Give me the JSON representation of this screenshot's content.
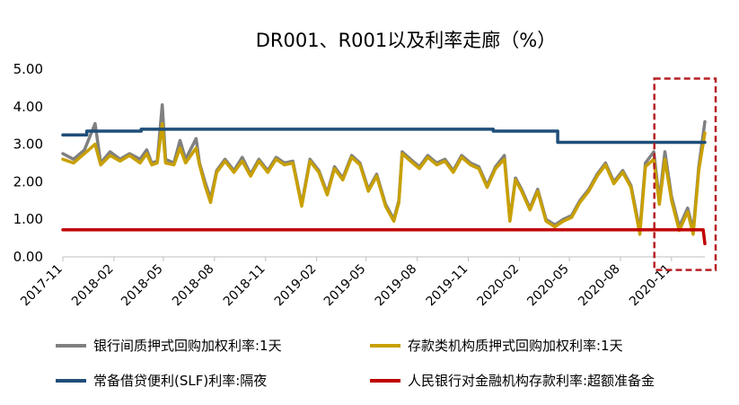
{
  "chart_data": {
    "type": "line",
    "title": "DR001、R001以及利率走廊（%）",
    "xlabel": "",
    "ylabel": "",
    "ylim": [
      0,
      5
    ],
    "yticks": [
      "0.00",
      "1.00",
      "2.00",
      "3.00",
      "4.00",
      "5.00"
    ],
    "x_ticks": [
      "2017-11",
      "2018-02",
      "2018-05",
      "2018-08",
      "2018-11",
      "2019-02",
      "2019-05",
      "2019-08",
      "2019-11",
      "2020-02",
      "2020-05",
      "2020-08",
      "2020-11"
    ],
    "x_range": [
      "2017-11-01",
      "2020-12-31"
    ],
    "grid": false,
    "legend_position": "bottom",
    "highlight_box": {
      "x_start": "2020-10-01",
      "x_end": "2020-12-31",
      "y_start": -0.35,
      "y_end": 4.75,
      "style": "dashed",
      "color": "#b52025"
    },
    "series": [
      {
        "name": "银行间质押式回购加权利率:1天",
        "color": "#808080",
        "points": [
          [
            "2017-11-01",
            2.75
          ],
          [
            "2017-11-20",
            2.6
          ],
          [
            "2017-12-10",
            2.85
          ],
          [
            "2017-12-29",
            3.55
          ],
          [
            "2018-01-08",
            2.5
          ],
          [
            "2018-01-25",
            2.8
          ],
          [
            "2018-02-12",
            2.6
          ],
          [
            "2018-03-01",
            2.75
          ],
          [
            "2018-03-20",
            2.6
          ],
          [
            "2018-04-01",
            2.85
          ],
          [
            "2018-04-10",
            2.5
          ],
          [
            "2018-04-20",
            2.55
          ],
          [
            "2018-04-29",
            4.05
          ],
          [
            "2018-05-05",
            2.6
          ],
          [
            "2018-05-20",
            2.5
          ],
          [
            "2018-05-31",
            3.1
          ],
          [
            "2018-06-10",
            2.6
          ],
          [
            "2018-06-29",
            3.15
          ],
          [
            "2018-07-05",
            2.5
          ],
          [
            "2018-07-15",
            2.0
          ],
          [
            "2018-07-25",
            1.55
          ],
          [
            "2018-08-05",
            2.3
          ],
          [
            "2018-08-20",
            2.6
          ],
          [
            "2018-09-05",
            2.3
          ],
          [
            "2018-09-20",
            2.65
          ],
          [
            "2018-10-05",
            2.2
          ],
          [
            "2018-10-20",
            2.6
          ],
          [
            "2018-11-05",
            2.3
          ],
          [
            "2018-11-20",
            2.65
          ],
          [
            "2018-12-05",
            2.5
          ],
          [
            "2018-12-20",
            2.55
          ],
          [
            "2019-01-05",
            1.4
          ],
          [
            "2019-01-20",
            2.6
          ],
          [
            "2019-02-05",
            2.3
          ],
          [
            "2019-02-20",
            1.7
          ],
          [
            "2019-03-05",
            2.4
          ],
          [
            "2019-03-20",
            2.1
          ],
          [
            "2019-04-05",
            2.7
          ],
          [
            "2019-04-20",
            2.5
          ],
          [
            "2019-05-05",
            1.8
          ],
          [
            "2019-05-20",
            2.2
          ],
          [
            "2019-06-05",
            1.4
          ],
          [
            "2019-06-20",
            1.0
          ],
          [
            "2019-06-29",
            1.5
          ],
          [
            "2019-07-05",
            2.8
          ],
          [
            "2019-07-20",
            2.6
          ],
          [
            "2019-08-05",
            2.4
          ],
          [
            "2019-08-20",
            2.7
          ],
          [
            "2019-09-05",
            2.5
          ],
          [
            "2019-09-20",
            2.6
          ],
          [
            "2019-10-05",
            2.3
          ],
          [
            "2019-10-20",
            2.7
          ],
          [
            "2019-11-05",
            2.5
          ],
          [
            "2019-11-20",
            2.4
          ],
          [
            "2019-12-05",
            1.9
          ],
          [
            "2019-12-20",
            2.4
          ],
          [
            "2020-01-05",
            2.7
          ],
          [
            "2020-01-15",
            1.0
          ],
          [
            "2020-01-25",
            2.1
          ],
          [
            "2020-02-05",
            1.8
          ],
          [
            "2020-02-20",
            1.3
          ],
          [
            "2020-03-05",
            1.8
          ],
          [
            "2020-03-20",
            1.0
          ],
          [
            "2020-04-05",
            0.85
          ],
          [
            "2020-04-20",
            1.0
          ],
          [
            "2020-05-05",
            1.1
          ],
          [
            "2020-05-20",
            1.5
          ],
          [
            "2020-06-05",
            1.8
          ],
          [
            "2020-06-20",
            2.2
          ],
          [
            "2020-07-05",
            2.5
          ],
          [
            "2020-07-20",
            2.0
          ],
          [
            "2020-08-05",
            2.3
          ],
          [
            "2020-08-20",
            1.9
          ],
          [
            "2020-09-05",
            0.7
          ],
          [
            "2020-09-15",
            2.5
          ],
          [
            "2020-09-30",
            2.8
          ],
          [
            "2020-10-10",
            1.5
          ],
          [
            "2020-10-20",
            2.8
          ],
          [
            "2020-11-01",
            1.6
          ],
          [
            "2020-11-15",
            0.8
          ],
          [
            "2020-11-30",
            1.3
          ],
          [
            "2020-12-10",
            0.7
          ],
          [
            "2020-12-20",
            2.4
          ],
          [
            "2020-12-31",
            3.6
          ]
        ]
      },
      {
        "name": "存款类机构质押式回购加权利率:1天",
        "color": "#c8a000",
        "points": [
          [
            "2017-11-01",
            2.6
          ],
          [
            "2017-11-20",
            2.5
          ],
          [
            "2017-12-10",
            2.75
          ],
          [
            "2017-12-29",
            3.0
          ],
          [
            "2018-01-08",
            2.45
          ],
          [
            "2018-01-25",
            2.7
          ],
          [
            "2018-02-12",
            2.55
          ],
          [
            "2018-03-01",
            2.7
          ],
          [
            "2018-03-20",
            2.5
          ],
          [
            "2018-04-01",
            2.75
          ],
          [
            "2018-04-10",
            2.45
          ],
          [
            "2018-04-20",
            2.5
          ],
          [
            "2018-04-29",
            3.55
          ],
          [
            "2018-05-05",
            2.5
          ],
          [
            "2018-05-20",
            2.45
          ],
          [
            "2018-05-31",
            2.9
          ],
          [
            "2018-06-10",
            2.5
          ],
          [
            "2018-06-29",
            2.9
          ],
          [
            "2018-07-05",
            2.45
          ],
          [
            "2018-07-15",
            1.9
          ],
          [
            "2018-07-25",
            1.45
          ],
          [
            "2018-08-05",
            2.25
          ],
          [
            "2018-08-20",
            2.55
          ],
          [
            "2018-09-05",
            2.25
          ],
          [
            "2018-09-20",
            2.55
          ],
          [
            "2018-10-05",
            2.15
          ],
          [
            "2018-10-20",
            2.55
          ],
          [
            "2018-11-05",
            2.25
          ],
          [
            "2018-11-20",
            2.6
          ],
          [
            "2018-12-05",
            2.45
          ],
          [
            "2018-12-20",
            2.5
          ],
          [
            "2019-01-05",
            1.35
          ],
          [
            "2019-01-20",
            2.55
          ],
          [
            "2019-02-05",
            2.25
          ],
          [
            "2019-02-20",
            1.65
          ],
          [
            "2019-03-05",
            2.35
          ],
          [
            "2019-03-20",
            2.05
          ],
          [
            "2019-04-05",
            2.65
          ],
          [
            "2019-04-20",
            2.45
          ],
          [
            "2019-05-05",
            1.75
          ],
          [
            "2019-05-20",
            2.15
          ],
          [
            "2019-06-05",
            1.35
          ],
          [
            "2019-06-20",
            0.95
          ],
          [
            "2019-06-29",
            1.45
          ],
          [
            "2019-07-05",
            2.75
          ],
          [
            "2019-07-20",
            2.55
          ],
          [
            "2019-08-05",
            2.35
          ],
          [
            "2019-08-20",
            2.65
          ],
          [
            "2019-09-05",
            2.45
          ],
          [
            "2019-09-20",
            2.55
          ],
          [
            "2019-10-05",
            2.25
          ],
          [
            "2019-10-20",
            2.65
          ],
          [
            "2019-11-05",
            2.45
          ],
          [
            "2019-11-20",
            2.35
          ],
          [
            "2019-12-05",
            1.85
          ],
          [
            "2019-12-20",
            2.35
          ],
          [
            "2020-01-05",
            2.6
          ],
          [
            "2020-01-15",
            0.95
          ],
          [
            "2020-01-25",
            2.05
          ],
          [
            "2020-02-05",
            1.75
          ],
          [
            "2020-02-20",
            1.25
          ],
          [
            "2020-03-05",
            1.75
          ],
          [
            "2020-03-20",
            0.95
          ],
          [
            "2020-04-05",
            0.8
          ],
          [
            "2020-04-20",
            0.95
          ],
          [
            "2020-05-05",
            1.05
          ],
          [
            "2020-05-20",
            1.45
          ],
          [
            "2020-06-05",
            1.75
          ],
          [
            "2020-06-20",
            2.15
          ],
          [
            "2020-07-05",
            2.45
          ],
          [
            "2020-07-20",
            1.95
          ],
          [
            "2020-08-05",
            2.25
          ],
          [
            "2020-08-20",
            1.85
          ],
          [
            "2020-09-05",
            0.6
          ],
          [
            "2020-09-15",
            2.4
          ],
          [
            "2020-09-30",
            2.6
          ],
          [
            "2020-10-10",
            1.4
          ],
          [
            "2020-10-20",
            2.6
          ],
          [
            "2020-11-01",
            1.5
          ],
          [
            "2020-11-15",
            0.7
          ],
          [
            "2020-11-30",
            1.2
          ],
          [
            "2020-12-10",
            0.6
          ],
          [
            "2020-12-20",
            2.3
          ],
          [
            "2020-12-31",
            3.3
          ]
        ]
      },
      {
        "name": "常备借贷便利(SLF)利率:隔夜",
        "color": "#1f4e79",
        "points": [
          [
            "2017-11-01",
            3.25
          ],
          [
            "2017-12-14",
            3.25
          ],
          [
            "2017-12-14",
            3.35
          ],
          [
            "2018-03-22",
            3.35
          ],
          [
            "2018-03-22",
            3.4
          ],
          [
            "2019-12-16",
            3.4
          ],
          [
            "2019-12-16",
            3.35
          ],
          [
            "2020-04-10",
            3.35
          ],
          [
            "2020-04-10",
            3.05
          ],
          [
            "2020-12-31",
            3.05
          ]
        ]
      },
      {
        "name": "人民银行对金融机构存款利率:超额准备金",
        "color": "#c00000",
        "points": [
          [
            "2017-11-01",
            0.72
          ],
          [
            "2020-12-28",
            0.72
          ],
          [
            "2020-12-31",
            0.35
          ]
        ]
      }
    ]
  }
}
